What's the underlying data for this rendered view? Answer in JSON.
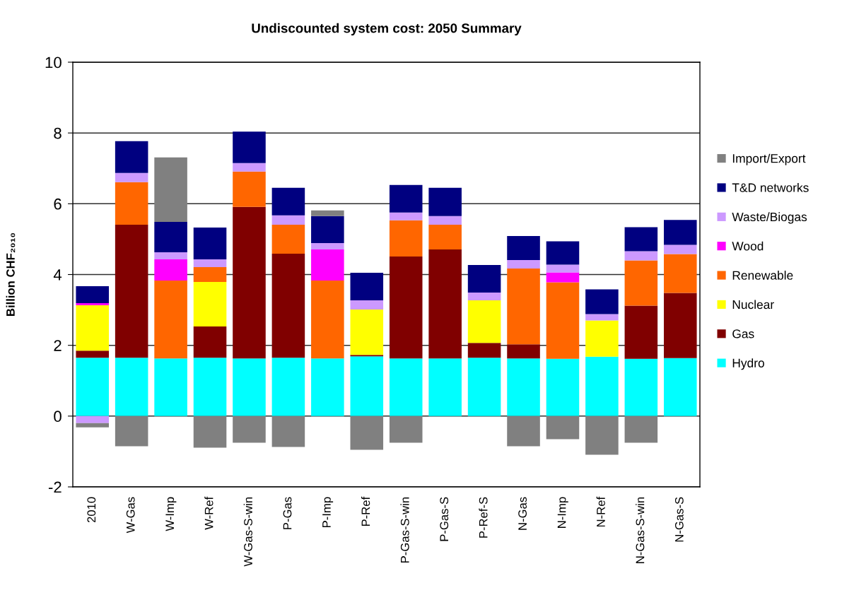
{
  "chart_data": {
    "type": "bar",
    "stacked": true,
    "title": "Undiscounted system cost: 2050 Summary",
    "ylabel": "Billion CHF₂₀₁₀",
    "categories": [
      "2010",
      "W-Gas",
      "W-Imp",
      "W-Ref",
      "W-Gas-S-win",
      "P-Gas",
      "P-Imp",
      "P-Ref",
      "P-Gas-S-win",
      "P-Gas-S",
      "P-Ref-S",
      "N-Gas",
      "N-Imp",
      "N-Ref",
      "N-Gas-S-win",
      "N-Gas-S"
    ],
    "series": [
      {
        "name": "Hydro",
        "color": "#00ffff",
        "values": [
          1.65,
          1.65,
          1.63,
          1.65,
          1.63,
          1.65,
          1.63,
          1.69,
          1.63,
          1.63,
          1.65,
          1.63,
          1.62,
          1.68,
          1.62,
          1.64
        ]
      },
      {
        "name": "Gas",
        "color": "#800000",
        "values": [
          0.2,
          3.76,
          null,
          0.88,
          4.28,
          2.94,
          null,
          0.04,
          2.88,
          3.08,
          0.42,
          0.4,
          null,
          null,
          1.5,
          1.84
        ]
      },
      {
        "name": "Nuclear",
        "color": "#ffff00",
        "values": [
          1.28,
          null,
          null,
          1.26,
          null,
          null,
          null,
          1.28,
          null,
          null,
          1.2,
          null,
          null,
          1.02,
          null,
          null
        ]
      },
      {
        "name": "Renewable",
        "color": "#ff6600",
        "values": [
          null,
          1.2,
          2.2,
          0.42,
          1.0,
          0.82,
          2.2,
          null,
          1.02,
          0.7,
          null,
          2.14,
          2.16,
          null,
          1.28,
          1.1
        ]
      },
      {
        "name": "Wood",
        "color": "#ff00ff",
        "values": [
          0.06,
          null,
          0.6,
          null,
          null,
          null,
          0.88,
          null,
          null,
          null,
          null,
          null,
          0.28,
          null,
          null,
          null
        ]
      },
      {
        "name": "Waste/Biogas",
        "color": "#cc99ff",
        "values": [
          -0.2,
          0.26,
          0.2,
          0.22,
          0.24,
          0.26,
          0.18,
          0.26,
          0.22,
          0.24,
          0.22,
          0.24,
          0.22,
          0.18,
          0.26,
          0.26
        ]
      },
      {
        "name": "T&D networks",
        "color": "#000080",
        "values": [
          0.48,
          0.9,
          0.86,
          0.9,
          0.89,
          0.78,
          0.76,
          0.78,
          0.78,
          0.8,
          0.78,
          0.68,
          0.66,
          0.7,
          0.68,
          0.7
        ]
      },
      {
        "name": "Import/Export",
        "color": "#808080",
        "values": [
          -0.12,
          -0.85,
          1.82,
          -0.89,
          -0.75,
          -0.87,
          0.16,
          -0.95,
          -0.75,
          null,
          null,
          -0.85,
          -0.65,
          -1.09,
          -0.75,
          null
        ]
      }
    ],
    "ylim": [
      -2,
      10
    ],
    "yticks": [
      -2,
      0,
      2,
      4,
      6,
      8,
      10
    ],
    "grid": "y",
    "legend": "right"
  }
}
